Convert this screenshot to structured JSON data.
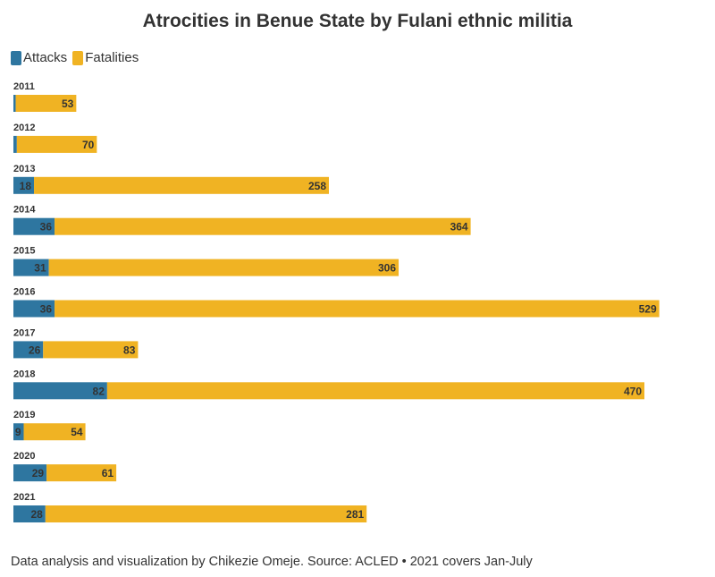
{
  "chart_data": {
    "type": "bar",
    "orientation": "horizontal",
    "stacked": true,
    "title": "Atrocities in Benue State by Fulani ethnic militia",
    "legend_position": "top-left",
    "categories": [
      "2011",
      "2012",
      "2013",
      "2014",
      "2015",
      "2016",
      "2017",
      "2018",
      "2019",
      "2020",
      "2021"
    ],
    "series": [
      {
        "name": "Attacks",
        "color": "#2e76a0",
        "values": [
          2,
          3,
          18,
          36,
          31,
          36,
          26,
          82,
          9,
          29,
          28
        ],
        "labels": [
          "",
          "",
          "18",
          "36",
          "31",
          "36",
          "26",
          "82",
          "9",
          "29",
          "28"
        ]
      },
      {
        "name": "Fatalities",
        "color": "#f0b323",
        "values": [
          53,
          70,
          258,
          364,
          306,
          529,
          83,
          470,
          54,
          61,
          281
        ],
        "labels": [
          "53",
          "70",
          "258",
          "364",
          "306",
          "529",
          "83",
          "470",
          "54",
          "61",
          "281"
        ]
      }
    ],
    "note": "Data analysis and visualization by Chikezie Omeje. Source: ACLED • 2021 covers Jan-July"
  }
}
